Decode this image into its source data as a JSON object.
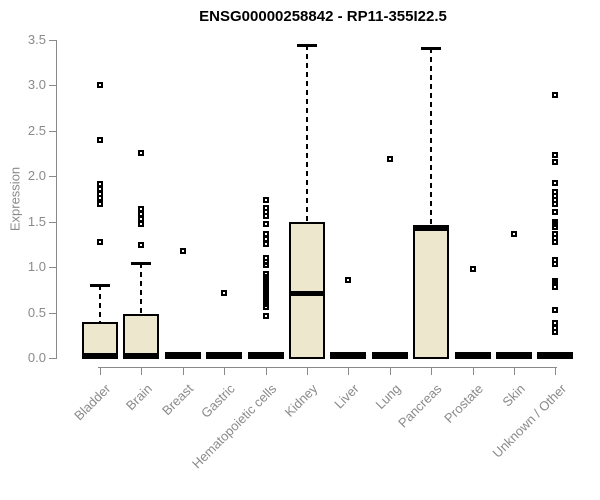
{
  "title": "ENSG00000258842 - RP11-355I22.5",
  "chart_data": {
    "type": "boxplot",
    "title": "ENSG00000258842 - RP11-355I22.5",
    "ylabel": "Expression",
    "xlabel": "",
    "ylim": [
      0,
      3.5
    ],
    "yticks": [
      0.0,
      0.5,
      1.0,
      1.5,
      2.0,
      2.5,
      3.0,
      3.5
    ],
    "grid": false,
    "legend": "none",
    "box_fill": "#EDE7CE",
    "box_border": "#000000",
    "axis_color": "#8A8A8A",
    "text_color": "#8A8A8A",
    "title_color": "#000000",
    "categories": [
      "Bladder",
      "Brain",
      "Breast",
      "Gastric",
      "Hematopoietic cells",
      "Kidney",
      "Liver",
      "Lung",
      "Pancreas",
      "Prostate",
      "Skin",
      "Unknown / Other"
    ],
    "boxes": [
      {
        "category": "Bladder",
        "q1": 0,
        "median": 0.02,
        "q3": 0.4,
        "whisker_low": 0,
        "whisker_high": 0.8,
        "outliers": [
          1.28,
          1.7,
          1.76,
          1.81,
          1.86,
          1.91,
          2.4,
          3.01
        ]
      },
      {
        "category": "Brain",
        "q1": 0,
        "median": 0.02,
        "q3": 0.48,
        "whisker_low": 0,
        "whisker_high": 1.05,
        "outliers": [
          1.24,
          1.47,
          1.53,
          1.58,
          1.64,
          2.26
        ]
      },
      {
        "category": "Breast",
        "q1": 0,
        "median": 0.01,
        "q3": 0.02,
        "whisker_low": 0,
        "whisker_high": 0.02,
        "outliers": [
          1.18
        ]
      },
      {
        "category": "Gastric",
        "q1": 0,
        "median": 0.01,
        "q3": 0.02,
        "whisker_low": 0,
        "whisker_high": 0.02,
        "outliers": [
          0.72
        ]
      },
      {
        "category": "Hematopoietic cells",
        "q1": 0,
        "median": 0.01,
        "q3": 0.02,
        "whisker_low": 0,
        "whisker_high": 0.02,
        "outliers": [
          0.46,
          0.56,
          0.59,
          0.62,
          0.65,
          0.68,
          0.71,
          0.74,
          0.77,
          0.8,
          0.83,
          0.86,
          0.89,
          0.92,
          1.02,
          1.06,
          1.1,
          1.26,
          1.31,
          1.37,
          1.48,
          1.56,
          1.61,
          1.65,
          1.74
        ]
      },
      {
        "category": "Kidney",
        "q1": 0,
        "median": 0.72,
        "q3": 1.5,
        "whisker_low": 0,
        "whisker_high": 3.45,
        "outliers": []
      },
      {
        "category": "Liver",
        "q1": 0,
        "median": 0.01,
        "q3": 0.02,
        "whisker_low": 0,
        "whisker_high": 0.02,
        "outliers": [
          0.86
        ]
      },
      {
        "category": "Lung",
        "q1": 0,
        "median": 0.01,
        "q3": 0.02,
        "whisker_low": 0,
        "whisker_high": 0.02,
        "outliers": [
          2.19
        ]
      },
      {
        "category": "Pancreas",
        "q1": 0,
        "median": 1.43,
        "q3": 1.46,
        "whisker_low": 0,
        "whisker_high": 3.41,
        "outliers": []
      },
      {
        "category": "Prostate",
        "q1": 0,
        "median": 0.01,
        "q3": 0.02,
        "whisker_low": 0,
        "whisker_high": 0.02,
        "outliers": [
          0.98
        ]
      },
      {
        "category": "Skin",
        "q1": 0,
        "median": 0.01,
        "q3": 0.02,
        "whisker_low": 0,
        "whisker_high": 0.02,
        "outliers": [
          1.36
        ]
      },
      {
        "category": "Unknown / Other",
        "q1": 0,
        "median": 0.01,
        "q3": 0.02,
        "whisker_low": 0,
        "whisker_high": 0.02,
        "outliers": [
          0.29,
          0.33,
          0.38,
          0.53,
          0.78,
          0.82,
          0.85,
          1.04,
          1.08,
          1.28,
          1.32,
          1.37,
          1.44,
          1.47,
          1.5,
          1.61,
          1.7,
          1.74,
          1.78,
          1.83,
          1.93,
          2.16,
          2.23,
          2.89
        ]
      }
    ]
  }
}
